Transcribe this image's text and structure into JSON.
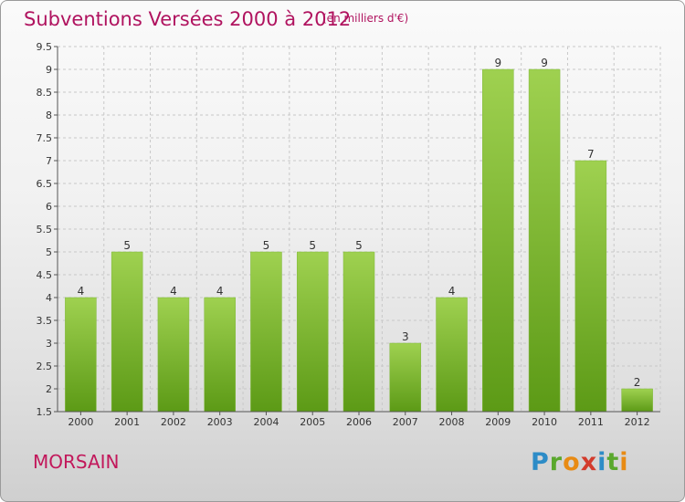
{
  "header": {
    "title": "Subventions Versées 2000 à 2012",
    "subtitle": "(en milliers d'€)"
  },
  "footer": {
    "commune": "MORSAIN",
    "logo_letters": [
      {
        "ch": "P",
        "color": "#2d8cc7"
      },
      {
        "ch": "r",
        "color": "#5aa82d"
      },
      {
        "ch": "o",
        "color": "#e88b14"
      },
      {
        "ch": "x",
        "color": "#d33b2c"
      },
      {
        "ch": "i",
        "color": "#2d8cc7"
      },
      {
        "ch": "t",
        "color": "#5aa82d"
      },
      {
        "ch": "i",
        "color": "#e88b14"
      }
    ]
  },
  "colors": {
    "title": "#b0135f",
    "bar_top": "#9fd150",
    "bar_bottom": "#5c9a16",
    "grid": "#c8c8c8"
  },
  "chart_data": {
    "type": "bar",
    "categories": [
      "2000",
      "2001",
      "2002",
      "2003",
      "2004",
      "2005",
      "2006",
      "2007",
      "2008",
      "2009",
      "2010",
      "2011",
      "2012"
    ],
    "values": [
      4,
      5,
      4,
      4,
      5,
      5,
      5,
      3,
      4,
      9,
      9,
      7,
      2
    ],
    "ylim": [
      1.5,
      9.5
    ],
    "yticks": [
      "1.5",
      "2",
      "2.5",
      "3",
      "3.5",
      "4",
      "4.5",
      "5",
      "5.5",
      "6",
      "6.5",
      "7",
      "7.5",
      "8",
      "8.5",
      "9",
      "9.5"
    ],
    "grid": true
  }
}
